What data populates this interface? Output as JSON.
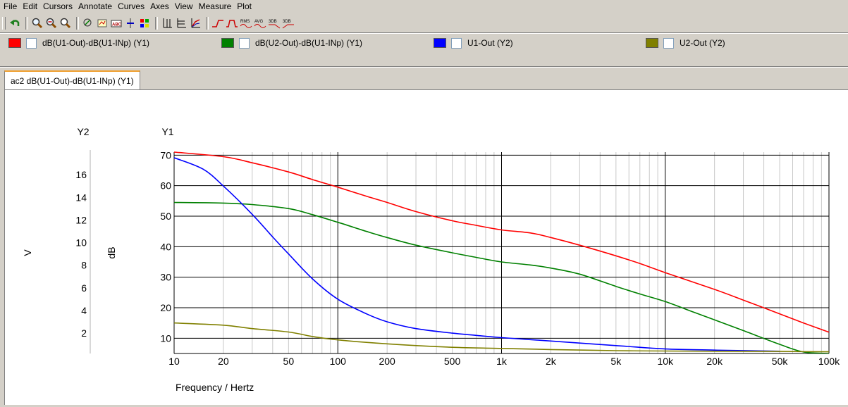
{
  "menu": [
    "File",
    "Edit",
    "Cursors",
    "Annotate",
    "Curves",
    "Axes",
    "View",
    "Measure",
    "Plot"
  ],
  "toolbar": {
    "icons": [
      "undo-icon",
      "zoom-in-icon",
      "zoom-out-icon",
      "zoom-fit-icon",
      "cursor-icon",
      "cursor-pair-icon",
      "label-icon",
      "add-trace-icon",
      "paint-icon",
      "grid-icon",
      "axis-icon",
      "chart-icon",
      "rise-icon",
      "pulse-icon",
      "rms-icon",
      "avg-icon",
      "3db-icon",
      "3db-high-icon"
    ],
    "text_icons": {
      "rms": "RMS",
      "avg": "AVG",
      "db3": "3DB",
      "db3b": "3DB"
    }
  },
  "legend": [
    {
      "label": "dB(U1-Out)-dB(U1-INp) (Y1)",
      "color": "#ff0000"
    },
    {
      "label": "dB(U2-Out)-dB(U1-INp) (Y1)",
      "color": "#008000"
    },
    {
      "label": "U1-Out (Y2)",
      "color": "#0000ff"
    },
    {
      "label": "U2-Out (Y2)",
      "color": "#808000"
    }
  ],
  "tab": {
    "label": "ac2 dB(U1-Out)-dB(U1-INp) (Y1)"
  },
  "chart_data": {
    "type": "line",
    "xlabel": "Frequency / Hertz",
    "x_scale": "log",
    "xlim": [
      10,
      100000
    ],
    "x_ticks": [
      10,
      20,
      50,
      100,
      200,
      500,
      1000,
      2000,
      5000,
      10000,
      20000,
      50000,
      100000
    ],
    "x_tick_labels": [
      "10",
      "20",
      "50",
      "100",
      "200",
      "500",
      "1k",
      "2k",
      "5k",
      "10k",
      "20k",
      "50k",
      "100k"
    ],
    "y1": {
      "axis_title": "Y1",
      "label": "dB",
      "ylim": [
        5,
        71
      ],
      "ticks": [
        10,
        20,
        30,
        40,
        50,
        60,
        70
      ]
    },
    "y2": {
      "axis_title": "Y2",
      "label": "V",
      "ylim": [
        0.2,
        18
      ],
      "ticks": [
        2,
        4,
        6,
        8,
        10,
        12,
        14,
        16
      ]
    },
    "grid": true,
    "series": [
      {
        "name": "dB(U1-Out)-dB(U1-INp) (Y1)",
        "axis": "y1",
        "color": "#ff0000",
        "x": [
          10,
          20,
          30,
          50,
          70,
          100,
          150,
          200,
          300,
          500,
          700,
          1000,
          1500,
          2000,
          3000,
          5000,
          7000,
          10000,
          20000,
          30000,
          50000,
          70000,
          100000
        ],
        "y": [
          71,
          69.5,
          67.5,
          64.5,
          62,
          59.5,
          56.5,
          54.5,
          51.5,
          48.5,
          47,
          45.5,
          44.5,
          43,
          40.5,
          37,
          34.5,
          31.5,
          26,
          22.5,
          18,
          15,
          12
        ]
      },
      {
        "name": "dB(U2-Out)-dB(U1-INp) (Y1)",
        "axis": "y1",
        "color": "#008000",
        "x": [
          10,
          20,
          30,
          50,
          70,
          100,
          150,
          200,
          300,
          500,
          700,
          1000,
          1500,
          2000,
          3000,
          5000,
          7000,
          10000,
          15000,
          20000,
          30000,
          50000,
          70000,
          100000
        ],
        "y": [
          54.5,
          54.3,
          53.8,
          52.5,
          50.5,
          48,
          45,
          43,
          40.5,
          38,
          36.5,
          35,
          34,
          33,
          31,
          27,
          24.5,
          22,
          18.5,
          16,
          12.5,
          8,
          5.5,
          3.5
        ]
      },
      {
        "name": "U1-Out (Y2)",
        "axis": "y2",
        "color": "#0000ff",
        "x": [
          10,
          15,
          20,
          30,
          40,
          50,
          70,
          100,
          150,
          200,
          300,
          500,
          700,
          1000,
          2000,
          5000,
          10000,
          20000,
          50000
        ],
        "y": [
          17.5,
          16.5,
          15,
          12.5,
          10.5,
          9,
          6.8,
          5,
          3.7,
          3,
          2.4,
          2,
          1.8,
          1.6,
          1.3,
          0.9,
          0.6,
          0.5,
          0.4
        ]
      },
      {
        "name": "U2-Out (Y2)",
        "axis": "y2",
        "color": "#808000",
        "x": [
          10,
          20,
          30,
          50,
          70,
          100,
          200,
          500,
          1000,
          2000,
          5000,
          10000,
          50000,
          100000
        ],
        "y": [
          2.9,
          2.7,
          2.4,
          2.1,
          1.7,
          1.4,
          1.05,
          0.75,
          0.65,
          0.55,
          0.45,
          0.42,
          0.38,
          0.35
        ]
      }
    ]
  }
}
